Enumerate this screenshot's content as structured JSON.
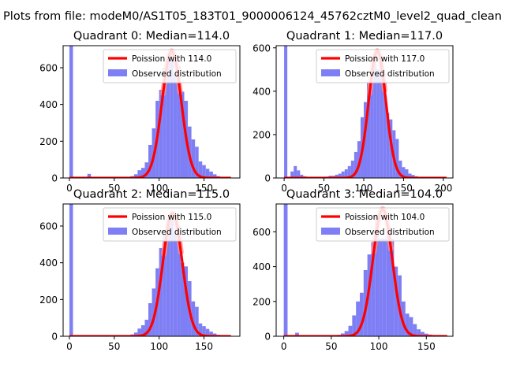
{
  "figure": {
    "suptitle": "Plots from file: modeM0/AS1T05_183T01_9000006124_45762cztM0_level2_quad_clean"
  },
  "colors": {
    "histogram": "#7f7ff5",
    "poisson_line": "#ff0000",
    "poisson_peak_glow": "#ff8f8f",
    "axes": "#000000",
    "background": "#ffffff"
  },
  "chart_data": [
    {
      "type": "bar",
      "title": "Quadrant 0: Median=114.0",
      "xlim": [
        -7,
        190
      ],
      "ylim": [
        0,
        720
      ],
      "xticks": [
        0,
        50,
        100,
        150
      ],
      "yticks": [
        0,
        200,
        400,
        600
      ],
      "legend_position": "top-right",
      "bin_width": 4,
      "bins": [
        [
          0,
          4,
          720
        ],
        [
          20,
          24,
          22
        ],
        [
          64,
          68,
          4
        ],
        [
          68,
          72,
          10
        ],
        [
          72,
          76,
          20
        ],
        [
          76,
          80,
          42
        ],
        [
          80,
          84,
          55
        ],
        [
          84,
          88,
          85
        ],
        [
          88,
          92,
          180
        ],
        [
          92,
          96,
          270
        ],
        [
          96,
          100,
          420
        ],
        [
          100,
          104,
          480
        ],
        [
          104,
          108,
          600
        ],
        [
          108,
          112,
          630
        ],
        [
          112,
          116,
          690
        ],
        [
          116,
          120,
          560
        ],
        [
          120,
          124,
          610
        ],
        [
          124,
          128,
          470
        ],
        [
          128,
          132,
          420
        ],
        [
          132,
          136,
          280
        ],
        [
          136,
          140,
          210
        ],
        [
          140,
          144,
          170
        ],
        [
          144,
          148,
          90
        ],
        [
          148,
          152,
          70
        ],
        [
          152,
          156,
          50
        ],
        [
          156,
          160,
          35
        ],
        [
          160,
          164,
          20
        ],
        [
          164,
          168,
          10
        ],
        [
          168,
          172,
          6
        ],
        [
          172,
          176,
          3
        ]
      ],
      "series": [
        {
          "name": "Poission with 114.0",
          "mean": 114.0,
          "peak": 690,
          "x_range": [
            0,
            180
          ]
        },
        {
          "name": "Observed distribution"
        }
      ]
    },
    {
      "type": "bar",
      "title": "Quadrant 1: Median=117.0",
      "xlim": [
        -10,
        212
      ],
      "ylim": [
        0,
        610
      ],
      "xticks": [
        0,
        50,
        100,
        150,
        200
      ],
      "yticks": [
        0,
        200,
        400,
        600
      ],
      "legend_position": "top-right",
      "bin_width": 4,
      "bins": [
        [
          0,
          4,
          610
        ],
        [
          4,
          8,
          3
        ],
        [
          8,
          12,
          30
        ],
        [
          12,
          16,
          55
        ],
        [
          16,
          20,
          35
        ],
        [
          20,
          24,
          15
        ],
        [
          24,
          28,
          8
        ],
        [
          28,
          32,
          5
        ],
        [
          36,
          40,
          3
        ],
        [
          48,
          52,
          4
        ],
        [
          52,
          56,
          6
        ],
        [
          56,
          60,
          10
        ],
        [
          60,
          64,
          10
        ],
        [
          64,
          68,
          15
        ],
        [
          68,
          72,
          20
        ],
        [
          72,
          76,
          30
        ],
        [
          76,
          80,
          40
        ],
        [
          80,
          84,
          55
        ],
        [
          84,
          88,
          80
        ],
        [
          88,
          92,
          120
        ],
        [
          92,
          96,
          170
        ],
        [
          96,
          100,
          280
        ],
        [
          100,
          104,
          350
        ],
        [
          104,
          108,
          440
        ],
        [
          108,
          112,
          500
        ],
        [
          112,
          116,
          570
        ],
        [
          116,
          120,
          500
        ],
        [
          120,
          124,
          530
        ],
        [
          124,
          128,
          450
        ],
        [
          128,
          132,
          300
        ],
        [
          132,
          136,
          270
        ],
        [
          136,
          140,
          220
        ],
        [
          140,
          144,
          180
        ],
        [
          144,
          148,
          80
        ],
        [
          148,
          152,
          50
        ],
        [
          152,
          156,
          40
        ],
        [
          156,
          160,
          20
        ],
        [
          160,
          164,
          14
        ],
        [
          164,
          168,
          8
        ],
        [
          168,
          172,
          4
        ],
        [
          172,
          176,
          3
        ]
      ],
      "series": [
        {
          "name": "Poission with 117.0",
          "mean": 117.0,
          "peak": 585,
          "x_range": [
            0,
            204
          ]
        },
        {
          "name": "Observed distribution"
        }
      ]
    },
    {
      "type": "bar",
      "title": "Quadrant 2: Median=115.0",
      "xlim": [
        -7,
        190
      ],
      "ylim": [
        0,
        720
      ],
      "xticks": [
        0,
        50,
        100,
        150
      ],
      "yticks": [
        0,
        200,
        400,
        600
      ],
      "legend_position": "top-right",
      "bin_width": 4,
      "bins": [
        [
          0,
          4,
          720
        ],
        [
          64,
          68,
          4
        ],
        [
          68,
          72,
          10
        ],
        [
          72,
          76,
          20
        ],
        [
          76,
          80,
          42
        ],
        [
          80,
          84,
          60
        ],
        [
          84,
          88,
          90
        ],
        [
          88,
          92,
          180
        ],
        [
          92,
          96,
          260
        ],
        [
          96,
          100,
          370
        ],
        [
          100,
          104,
          480
        ],
        [
          104,
          108,
          560
        ],
        [
          108,
          112,
          640
        ],
        [
          112,
          116,
          670
        ],
        [
          116,
          120,
          560
        ],
        [
          120,
          124,
          600
        ],
        [
          124,
          128,
          400
        ],
        [
          128,
          132,
          380
        ],
        [
          132,
          136,
          300
        ],
        [
          136,
          140,
          190
        ],
        [
          140,
          144,
          160
        ],
        [
          144,
          148,
          70
        ],
        [
          148,
          152,
          55
        ],
        [
          152,
          156,
          40
        ],
        [
          156,
          160,
          25
        ],
        [
          160,
          164,
          15
        ],
        [
          164,
          168,
          8
        ],
        [
          168,
          172,
          4
        ],
        [
          172,
          176,
          2
        ]
      ],
      "series": [
        {
          "name": "Poission with 115.0",
          "mean": 115.0,
          "peak": 670,
          "x_range": [
            0,
            180
          ]
        },
        {
          "name": "Observed distribution"
        }
      ]
    },
    {
      "type": "bar",
      "title": "Quadrant 3: Median=104.0",
      "xlim": [
        -8,
        178
      ],
      "ylim": [
        0,
        760
      ],
      "xticks": [
        0,
        50,
        100,
        150
      ],
      "yticks": [
        0,
        200,
        400,
        600
      ],
      "legend_position": "top-right",
      "bin_width": 4,
      "bins": [
        [
          0,
          4,
          760
        ],
        [
          12,
          16,
          20
        ],
        [
          16,
          20,
          5
        ],
        [
          52,
          56,
          4
        ],
        [
          56,
          60,
          8
        ],
        [
          60,
          64,
          16
        ],
        [
          64,
          68,
          30
        ],
        [
          68,
          72,
          60
        ],
        [
          72,
          76,
          120
        ],
        [
          76,
          80,
          200
        ],
        [
          80,
          84,
          250
        ],
        [
          84,
          88,
          380
        ],
        [
          88,
          92,
          470
        ],
        [
          92,
          96,
          540
        ],
        [
          96,
          100,
          700
        ],
        [
          100,
          104,
          560
        ],
        [
          104,
          108,
          560
        ],
        [
          108,
          112,
          640
        ],
        [
          112,
          116,
          560
        ],
        [
          116,
          120,
          400
        ],
        [
          120,
          124,
          350
        ],
        [
          124,
          128,
          200
        ],
        [
          128,
          132,
          130
        ],
        [
          132,
          136,
          110
        ],
        [
          136,
          140,
          70
        ],
        [
          140,
          144,
          40
        ],
        [
          144,
          148,
          25
        ],
        [
          148,
          152,
          15
        ],
        [
          152,
          156,
          10
        ],
        [
          156,
          160,
          6
        ],
        [
          160,
          164,
          3
        ]
      ],
      "series": [
        {
          "name": "Poission with 104.0",
          "mean": 104.0,
          "peak": 730,
          "x_range": [
            0,
            172
          ]
        },
        {
          "name": "Observed distribution"
        }
      ]
    }
  ]
}
